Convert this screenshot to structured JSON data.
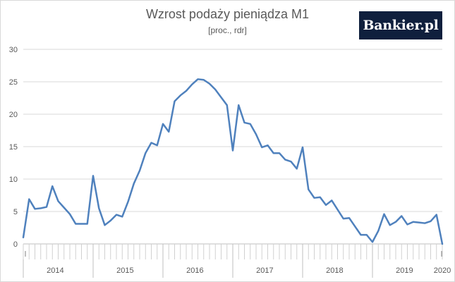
{
  "chart_data": {
    "type": "line",
    "title": "Wzrost podaży pieniądza M1",
    "subtitle": "[proc., rdr]",
    "xlabel": "",
    "ylabel": "",
    "ylim": [
      0,
      30
    ],
    "yticks": [
      0,
      5,
      10,
      15,
      20,
      25,
      30
    ],
    "grid": true,
    "legend": "none",
    "year_labels": [
      "2014",
      "2015",
      "2016",
      "2017",
      "2018",
      "2019",
      "2020"
    ],
    "x_start": "2014-01",
    "x_end": "2020-01",
    "series": [
      {
        "color": "#4f81bd",
        "x": [
          "2014-01",
          "2014-02",
          "2014-03",
          "2014-04",
          "2014-05",
          "2014-06",
          "2014-07",
          "2014-08",
          "2014-09",
          "2014-10",
          "2014-11",
          "2014-12",
          "2015-01",
          "2015-02",
          "2015-03",
          "2015-04",
          "2015-05",
          "2015-06",
          "2015-07",
          "2015-08",
          "2015-09",
          "2015-10",
          "2015-11",
          "2015-12",
          "2016-01",
          "2016-02",
          "2016-03",
          "2016-04",
          "2016-05",
          "2016-06",
          "2016-07",
          "2016-08",
          "2016-09",
          "2016-10",
          "2016-11",
          "2016-12",
          "2017-01",
          "2017-02",
          "2017-03",
          "2017-04",
          "2017-05",
          "2017-06",
          "2017-07",
          "2017-08",
          "2017-09",
          "2017-10",
          "2017-11",
          "2017-12",
          "2018-01",
          "2018-02",
          "2018-03",
          "2018-04",
          "2018-05",
          "2018-06",
          "2018-07",
          "2018-08",
          "2018-09",
          "2018-10",
          "2018-11",
          "2018-12",
          "2019-01",
          "2019-02",
          "2019-03",
          "2019-04",
          "2019-05",
          "2019-06",
          "2019-07",
          "2019-08",
          "2019-09",
          "2019-10",
          "2019-11",
          "2019-12",
          "2020-01"
        ],
        "values": [
          1.0,
          6.9,
          5.4,
          5.5,
          5.7,
          8.9,
          6.6,
          5.6,
          4.6,
          3.1,
          3.1,
          3.1,
          10.5,
          5.5,
          2.9,
          3.6,
          4.5,
          4.2,
          6.5,
          9.3,
          11.3,
          14.0,
          15.6,
          15.2,
          18.5,
          17.3,
          22.0,
          22.9,
          23.6,
          24.6,
          25.4,
          25.3,
          24.7,
          23.8,
          22.6,
          21.4,
          14.4,
          21.4,
          18.7,
          18.5,
          16.9,
          14.9,
          15.2,
          14.0,
          14.0,
          13.0,
          12.7,
          11.6,
          14.9,
          8.4,
          7.1,
          7.2,
          6.0,
          6.7,
          5.3,
          3.9,
          4.0,
          2.7,
          1.4,
          1.4,
          0.3,
          2.0,
          4.6,
          2.9,
          3.4,
          4.3,
          3.0,
          3.4,
          3.3,
          3.2,
          3.5,
          4.5,
          0.0
        ]
      }
    ]
  },
  "logo_text": "Bankier.pl"
}
